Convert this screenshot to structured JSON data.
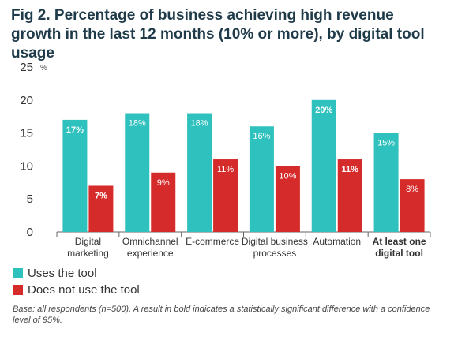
{
  "chart_data": {
    "type": "bar",
    "title": "Fig 2. Percentage of business achieving high revenue growth in the last 12 months (10% or more), by digital tool usage",
    "ylabel_unit": "%",
    "ylim": [
      0,
      25
    ],
    "yticks": [
      0,
      5,
      10,
      15,
      20,
      25
    ],
    "categories": [
      [
        "Digital",
        "marketing"
      ],
      [
        "Omnichannel",
        "experience"
      ],
      [
        "E-commerce"
      ],
      [
        "Digital business",
        "processes"
      ],
      [
        "Automation"
      ],
      [
        "At least one",
        "digital tool"
      ]
    ],
    "category_bold": [
      false,
      false,
      false,
      false,
      false,
      true
    ],
    "series": [
      {
        "name": "Uses the tool",
        "color": "#2fc1bd",
        "values": [
          17,
          18,
          18,
          16,
          20,
          15
        ],
        "labels": [
          "17%",
          "18%",
          "18%",
          "16%",
          "20%",
          "15%"
        ],
        "bold": [
          true,
          false,
          false,
          false,
          true,
          false
        ]
      },
      {
        "name": "Does not use the tool",
        "color": "#d62b2b",
        "values": [
          7,
          9,
          11,
          10,
          11,
          8
        ],
        "labels": [
          "7%",
          "9%",
          "11%",
          "10%",
          "11%",
          "8%"
        ],
        "bold": [
          true,
          false,
          false,
          false,
          true,
          false
        ]
      }
    ],
    "grid": false,
    "legend_position": "bottom-left"
  },
  "footnote": "Base: all respondents (n=500). A result in bold indicates a statistically significant difference with a confidence level of 95%."
}
